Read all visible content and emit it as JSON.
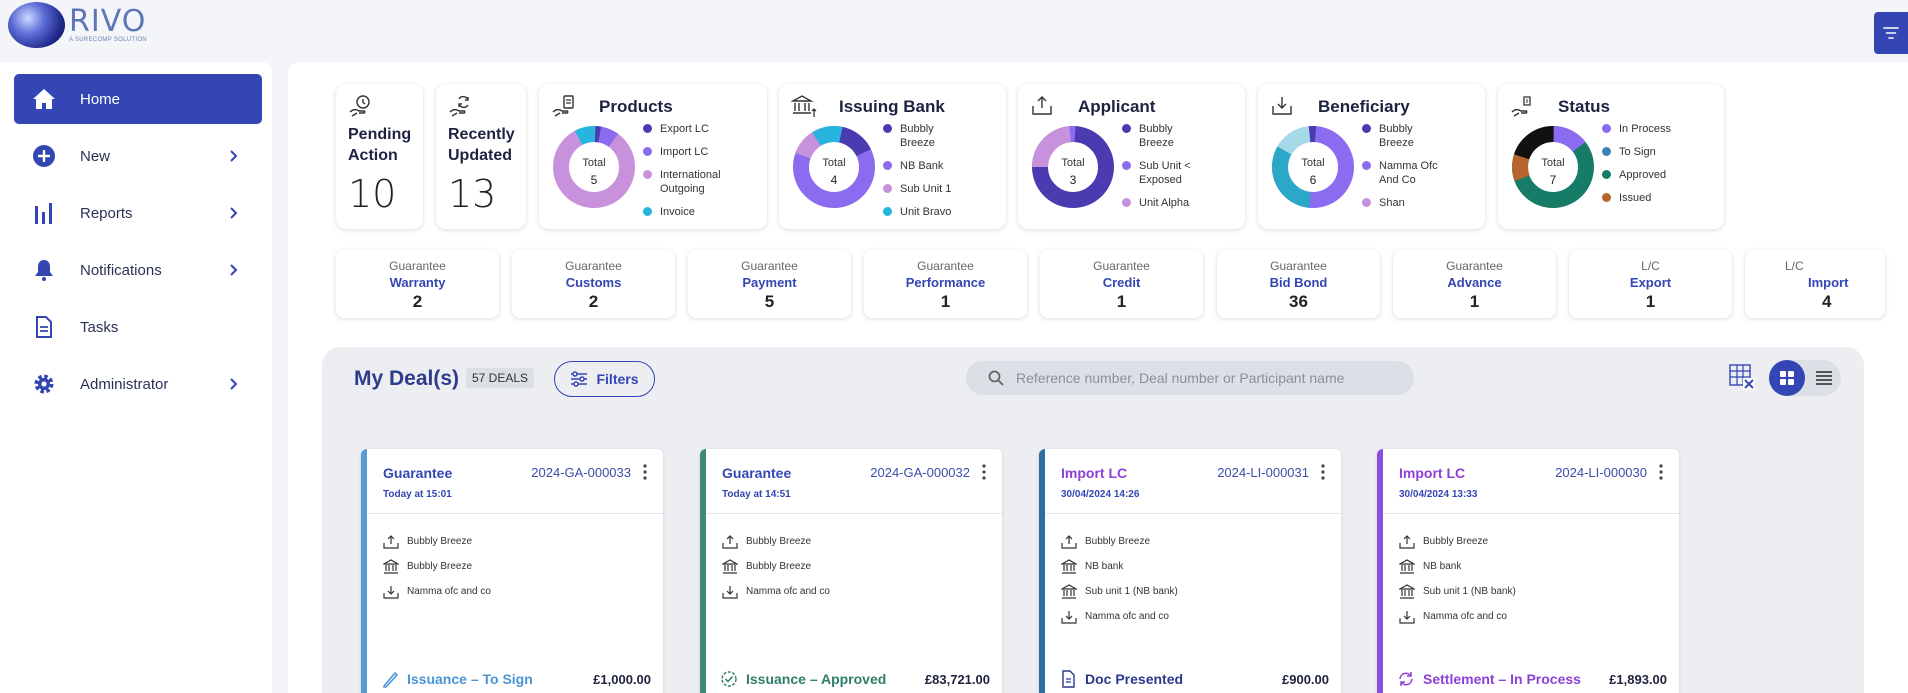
{
  "brand": {
    "name": "RIVO",
    "tagline": "A SURECOMP SOLUTION"
  },
  "sidebar": {
    "items": [
      {
        "label": "Home",
        "icon": "home-icon",
        "active": true
      },
      {
        "label": "New",
        "icon": "plus-circle-icon"
      },
      {
        "label": "Reports",
        "icon": "bar-chart-icon"
      },
      {
        "label": "Notifications",
        "icon": "bell-icon"
      },
      {
        "label": "Tasks",
        "icon": "document-icon"
      },
      {
        "label": "Administrator",
        "icon": "gear-icon"
      }
    ]
  },
  "summary": {
    "pending": {
      "label": "Pending Action",
      "value": "10"
    },
    "recent": {
      "label": "Recently Updated",
      "value": "13"
    },
    "total_label": "Total",
    "charts": [
      {
        "title": "Products",
        "total": "5",
        "legend": [
          "Export LC",
          "Import LC",
          "International Outgoing",
          "Invoice"
        ],
        "colors": [
          "#4b3bb0",
          "#8b6cf0",
          "#c891dc",
          "#27b5e0"
        ]
      },
      {
        "title": "Issuing Bank",
        "total": "4",
        "legend": [
          "Bubbly Breeze",
          "NB Bank",
          "Sub Unit 1",
          "Unit Bravo"
        ],
        "colors": [
          "#4b3bb0",
          "#8b6cf0",
          "#c891dc",
          "#27b5e0"
        ]
      },
      {
        "title": "Applicant",
        "total": "3",
        "legend": [
          "Bubbly Breeze",
          "Sub Unit < Exposed",
          "Unit Alpha"
        ],
        "colors": [
          "#4b3bb0",
          "#8b6cf0",
          "#c891dc"
        ]
      },
      {
        "title": "Beneficiary",
        "total": "6",
        "legend": [
          "Bubbly Breeze",
          "Namma Ofc And Co",
          "Shan"
        ],
        "colors": [
          "#4b3bb0",
          "#8b6cf0",
          "#c891dc"
        ]
      },
      {
        "title": "Status",
        "total": "7",
        "legend": [
          "In Process",
          "To Sign",
          "Approved",
          "Issued"
        ],
        "colors": [
          "#8b6cf0",
          "#3b82b8",
          "#167c68",
          "#b5652a"
        ]
      }
    ]
  },
  "tiles": [
    {
      "category": "Guarantee",
      "name": "Warranty",
      "count": "2"
    },
    {
      "category": "Guarantee",
      "name": "Customs",
      "count": "2"
    },
    {
      "category": "Guarantee",
      "name": "Payment",
      "count": "5"
    },
    {
      "category": "Guarantee",
      "name": "Performance",
      "count": "1"
    },
    {
      "category": "Guarantee",
      "name": "Credit",
      "count": "1"
    },
    {
      "category": "Guarantee",
      "name": "Bid Bond",
      "count": "36"
    },
    {
      "category": "Guarantee",
      "name": "Advance",
      "count": "1"
    },
    {
      "category": "L/C",
      "name": "Export",
      "count": "1"
    },
    {
      "category": "L/C",
      "name": "Import",
      "count": "4"
    }
  ],
  "deals": {
    "title": "My Deal(s)",
    "count": "57 DEALS",
    "filter_label": "Filters",
    "search_placeholder": "Reference number, Deal number or Participant name",
    "items": [
      {
        "type": "Guarantee",
        "ref": "2024-GA-000033",
        "date": "Today at 15:01",
        "accent": "#5b9ad5",
        "type_color": "#3346b3",
        "parties": [
          "Bubbly Breeze",
          "Bubbly Breeze",
          "Namma ofc and co"
        ],
        "status": "Issuance – To Sign",
        "status_color": "#4a93d6",
        "amount": "£1,000.00"
      },
      {
        "type": "Guarantee",
        "ref": "2024-GA-000032",
        "date": "Today at 14:51",
        "accent": "#3d8a78",
        "type_color": "#3346b3",
        "parties": [
          "Bubbly Breeze",
          "Bubbly Breeze",
          "Namma ofc and co"
        ],
        "status": "Issuance – Approved",
        "status_color": "#2f7d6c",
        "amount": "£83,721.00"
      },
      {
        "type": "Import LC",
        "ref": "2024-LI-000031",
        "date": "30/04/2024 14:26",
        "accent": "#2f6ea0",
        "type_color": "#8e3fd6",
        "parties": [
          "Bubbly Breeze",
          "NB bank",
          "Sub unit 1 (NB bank)",
          "Namma ofc and co"
        ],
        "status": "Doc Presented",
        "status_color": "#2b3a8c",
        "amount": "£900.00"
      },
      {
        "type": "Import LC",
        "ref": "2024-LI-000030",
        "date": "30/04/2024 13:33",
        "accent": "#8b4fe0",
        "type_color": "#8e3fd6",
        "parties": [
          "Bubbly Breeze",
          "NB bank",
          "Sub unit 1 (NB bank)",
          "Namma ofc and co"
        ],
        "status": "Settlement – In Process",
        "status_color": "#8e3fd6",
        "amount": "£1,893.00"
      }
    ]
  }
}
